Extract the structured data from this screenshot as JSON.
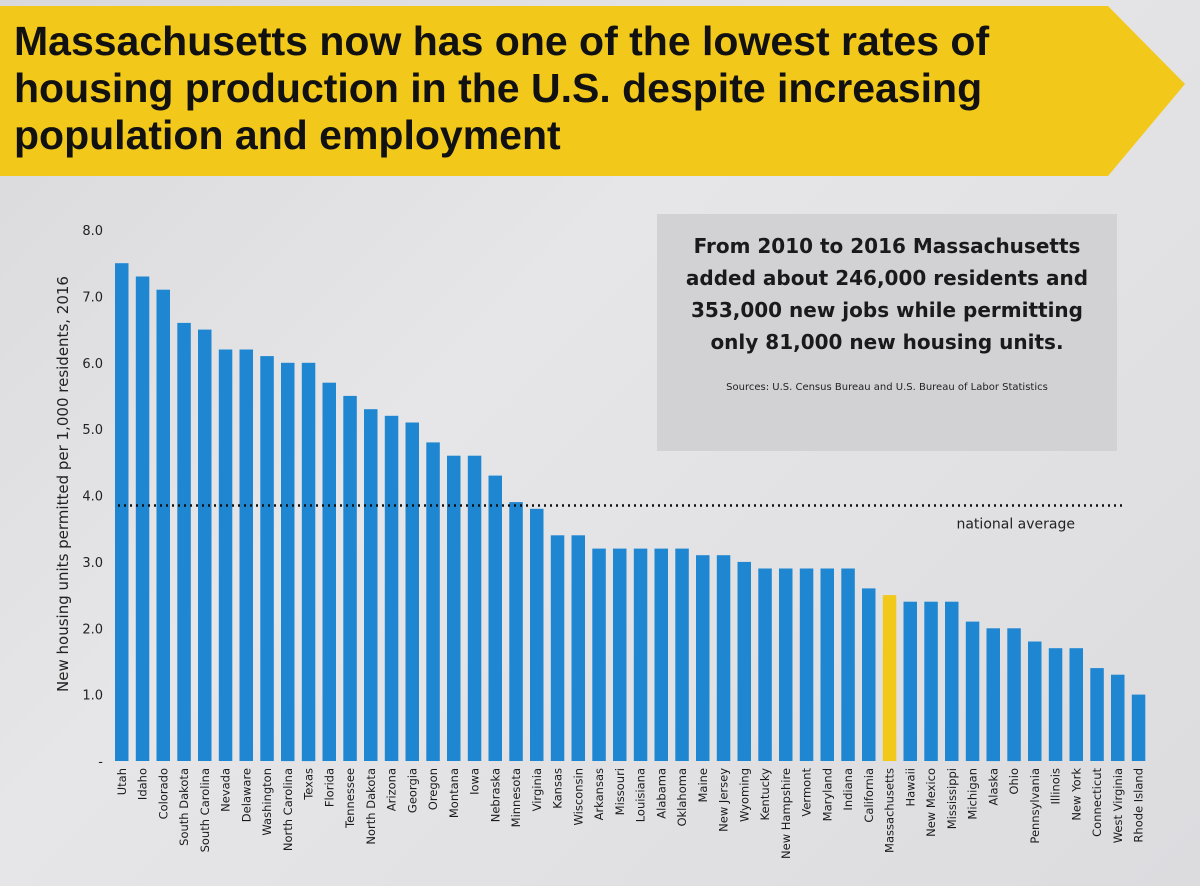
{
  "banner": {
    "title": "Massachusetts now has one of the lowest rates of housing production in the U.S. despite increasing population and employment",
    "color": "#f2c81b"
  },
  "infobox": {
    "text": "From 2010 to 2016 Massachusetts\nadded about 246,000 residents and\n353,000 new jobs while permitting\nonly 81,000 new housing units.",
    "source": "Sources: U.S. Census Bureau and U.S. Bureau of Labor Statistics"
  },
  "chart_data": {
    "type": "bar",
    "ylabel": "New housing units permitted per 1,000 residents, 2016",
    "ylim": [
      0,
      8
    ],
    "yticks": [
      "-",
      "1.0",
      "2.0",
      "3.0",
      "4.0",
      "5.0",
      "6.0",
      "7.0",
      "8.0"
    ],
    "bar_color": "#1f86d2",
    "highlight_color": "#f2c81b",
    "highlight": "Massachusetts",
    "reference_line": {
      "value": 3.85,
      "label": "national average"
    },
    "categories": [
      "Utah",
      "Idaho",
      "Colorado",
      "South Dakota",
      "South Carolina",
      "Nevada",
      "Delaware",
      "Washington",
      "North Carolina",
      "Texas",
      "Florida",
      "Tennessee",
      "North Dakota",
      "Arizona",
      "Georgia",
      "Oregon",
      "Montana",
      "Iowa",
      "Nebraska",
      "Minnesota",
      "Virginia",
      "Kansas",
      "Wisconsin",
      "Arkansas",
      "Missouri",
      "Louisiana",
      "Alabama",
      "Oklahoma",
      "Maine",
      "New Jersey",
      "Wyoming",
      "Kentucky",
      "New Hampshire",
      "Vermont",
      "Maryland",
      "Indiana",
      "California",
      "Massachusetts",
      "Hawaii",
      "New Mexico",
      "Mississippi",
      "Michigan",
      "Alaska",
      "Ohio",
      "Pennsylvania",
      "Illinois",
      "New York",
      "Connecticut",
      "West Virginia",
      "Rhode Island"
    ],
    "values": [
      7.5,
      7.3,
      7.1,
      6.6,
      6.5,
      6.2,
      6.2,
      6.1,
      6.0,
      6.0,
      5.7,
      5.5,
      5.3,
      5.2,
      5.1,
      4.8,
      4.6,
      4.6,
      4.3,
      3.9,
      3.8,
      3.4,
      3.4,
      3.2,
      3.2,
      3.2,
      3.2,
      3.2,
      3.1,
      3.1,
      3.0,
      2.9,
      2.9,
      2.9,
      2.9,
      2.9,
      2.6,
      2.5,
      2.4,
      2.4,
      2.4,
      2.1,
      2.0,
      2.0,
      1.8,
      1.7,
      1.7,
      1.4,
      1.3,
      1.0
    ]
  }
}
